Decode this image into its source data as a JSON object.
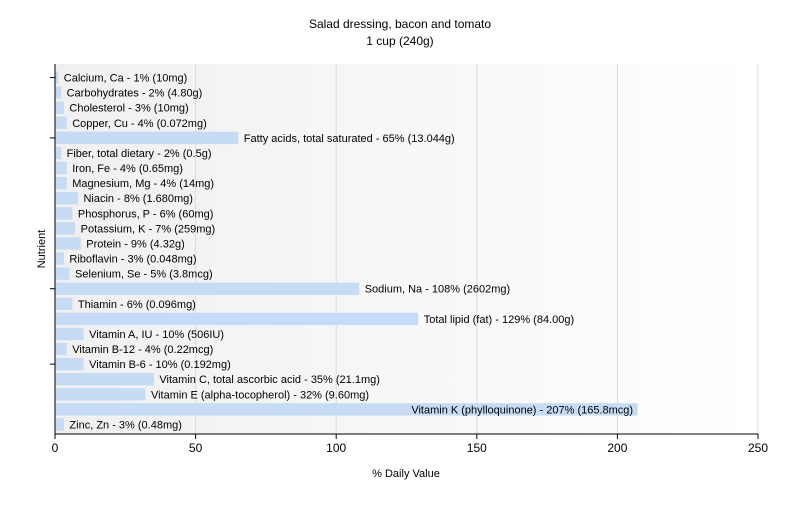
{
  "chart_data": {
    "type": "bar",
    "orientation": "horizontal",
    "title": "Salad dressing, bacon and tomato",
    "subtitle": "1 cup (240g)",
    "xlabel": "% Daily Value",
    "ylabel": "Nutrient",
    "xlim": [
      0,
      250
    ],
    "xticks": [
      0,
      50,
      100,
      150,
      200,
      250
    ],
    "grid": true,
    "legend": "none",
    "bar_color": "#c6dcf5",
    "plot_background": [
      "#f0f0f0",
      "#ffffff"
    ],
    "bars": [
      {
        "label": "Calcium, Ca - 1% (10mg)",
        "value": 1
      },
      {
        "label": "Carbohydrates - 2% (4.80g)",
        "value": 2
      },
      {
        "label": "Cholesterol - 3% (10mg)",
        "value": 3
      },
      {
        "label": "Copper, Cu - 4% (0.072mg)",
        "value": 4
      },
      {
        "label": "Fatty acids, total saturated - 65% (13.044g)",
        "value": 65
      },
      {
        "label": "Fiber, total dietary - 2% (0.5g)",
        "value": 2
      },
      {
        "label": "Iron, Fe - 4% (0.65mg)",
        "value": 4
      },
      {
        "label": "Magnesium, Mg - 4% (14mg)",
        "value": 4
      },
      {
        "label": "Niacin - 8% (1.680mg)",
        "value": 8
      },
      {
        "label": "Phosphorus, P - 6% (60mg)",
        "value": 6
      },
      {
        "label": "Potassium, K - 7% (259mg)",
        "value": 7
      },
      {
        "label": "Protein - 9% (4.32g)",
        "value": 9
      },
      {
        "label": "Riboflavin - 3% (0.048mg)",
        "value": 3
      },
      {
        "label": "Selenium, Se - 5% (3.8mcg)",
        "value": 5
      },
      {
        "label": "Sodium, Na - 108% (2602mg)",
        "value": 108
      },
      {
        "label": "Thiamin - 6% (0.096mg)",
        "value": 6
      },
      {
        "label": "Total lipid (fat) - 129% (84.00g)",
        "value": 129
      },
      {
        "label": "Vitamin A, IU - 10% (506IU)",
        "value": 10
      },
      {
        "label": "Vitamin B-12 - 4% (0.22mcg)",
        "value": 4
      },
      {
        "label": "Vitamin B-6 - 10% (0.192mg)",
        "value": 10
      },
      {
        "label": "Vitamin C, total ascorbic acid - 35% (21.1mg)",
        "value": 35
      },
      {
        "label": "Vitamin E (alpha-tocopherol) - 32% (9.60mg)",
        "value": 32
      },
      {
        "label": "Vitamin K (phylloquinone) - 207% (165.8mcg)",
        "value": 207
      },
      {
        "label": "Zinc, Zn - 3% (0.48mg)",
        "value": 3
      }
    ]
  }
}
